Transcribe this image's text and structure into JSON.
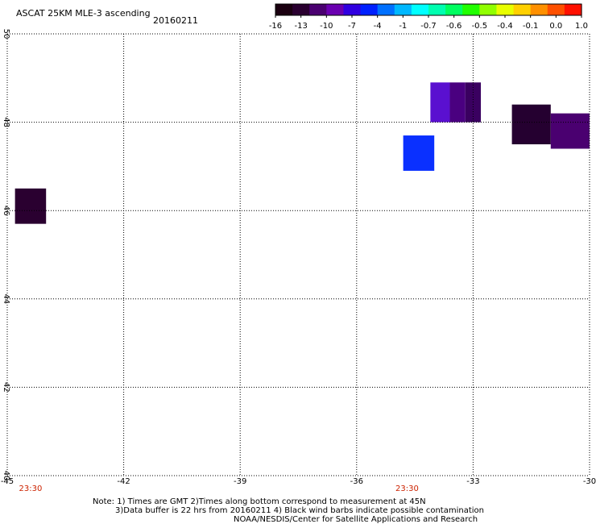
{
  "header": {
    "title": "ASCAT 25KM MLE-3 ascending",
    "date": "20160211"
  },
  "colorbar": {
    "colors": [
      "#1a0010",
      "#2a0030",
      "#4a0070",
      "#6a00b0",
      "#3000e0",
      "#0020ff",
      "#0070ff",
      "#00b8ff",
      "#00ffff",
      "#00ffb0",
      "#00ff60",
      "#20ff00",
      "#90ff00",
      "#e8ff00",
      "#ffd000",
      "#ff9000",
      "#ff5000",
      "#ff1000"
    ],
    "labels": [
      "-16",
      "-13",
      "-10",
      "-7",
      "-4",
      "-1",
      "-0.7",
      "-0.6",
      "-0.5",
      "-0.4",
      "-0.1",
      "0.0",
      "1.0"
    ]
  },
  "chart_data": {
    "type": "heatmap",
    "title": "ASCAT 25KM MLE-3 ascending",
    "xlim": [
      -45,
      -30
    ],
    "ylim": [
      40,
      50
    ],
    "x_ticks": [
      "-45",
      "-42",
      "-39",
      "-36",
      "-33",
      "-30"
    ],
    "x_tick_values": [
      -45,
      -42,
      -39,
      -36,
      -33,
      -30
    ],
    "y_ticks": [
      "40",
      "42",
      "44",
      "46",
      "48",
      "50"
    ],
    "y_tick_values": [
      40,
      42,
      44,
      46,
      48,
      50
    ],
    "grid": true,
    "time_labels": [
      {
        "lon": -44.4,
        "text": "23:30"
      },
      {
        "lon": -34.7,
        "text": "23:30"
      }
    ],
    "cells": [
      {
        "lon": [
          -44.8,
          -44.0
        ],
        "lat": [
          45.7,
          46.5
        ],
        "color": "#2a0030"
      },
      {
        "lon": [
          -34.8,
          -34.0
        ],
        "lat": [
          46.9,
          47.7
        ],
        "color": "#0a30ff"
      },
      {
        "lon": [
          -34.1,
          -33.6
        ],
        "lat": [
          48.0,
          48.9
        ],
        "color": "#5a10d0"
      },
      {
        "lon": [
          -33.6,
          -33.2
        ],
        "lat": [
          48.0,
          48.9
        ],
        "color": "#4a0080"
      },
      {
        "lon": [
          -33.2,
          -32.8
        ],
        "lat": [
          48.0,
          48.9
        ],
        "color": "#3a0060"
      },
      {
        "lon": [
          -32.0,
          -31.0
        ],
        "lat": [
          47.5,
          48.4
        ],
        "color": "#250030"
      },
      {
        "lon": [
          -31.0,
          -30.0
        ],
        "lat": [
          47.4,
          48.2
        ],
        "color": "#4a0070"
      }
    ]
  },
  "notes": {
    "line1": "Note: 1) Times are GMT 2)Times along bottom correspond to measurement at 45N",
    "line2": "3)Data buffer is 22 hrs from 20160211 4) Black wind barbs indicate possible contamination",
    "line3": "NOAA/NESDIS/Center for Satellite Applications and Research"
  }
}
